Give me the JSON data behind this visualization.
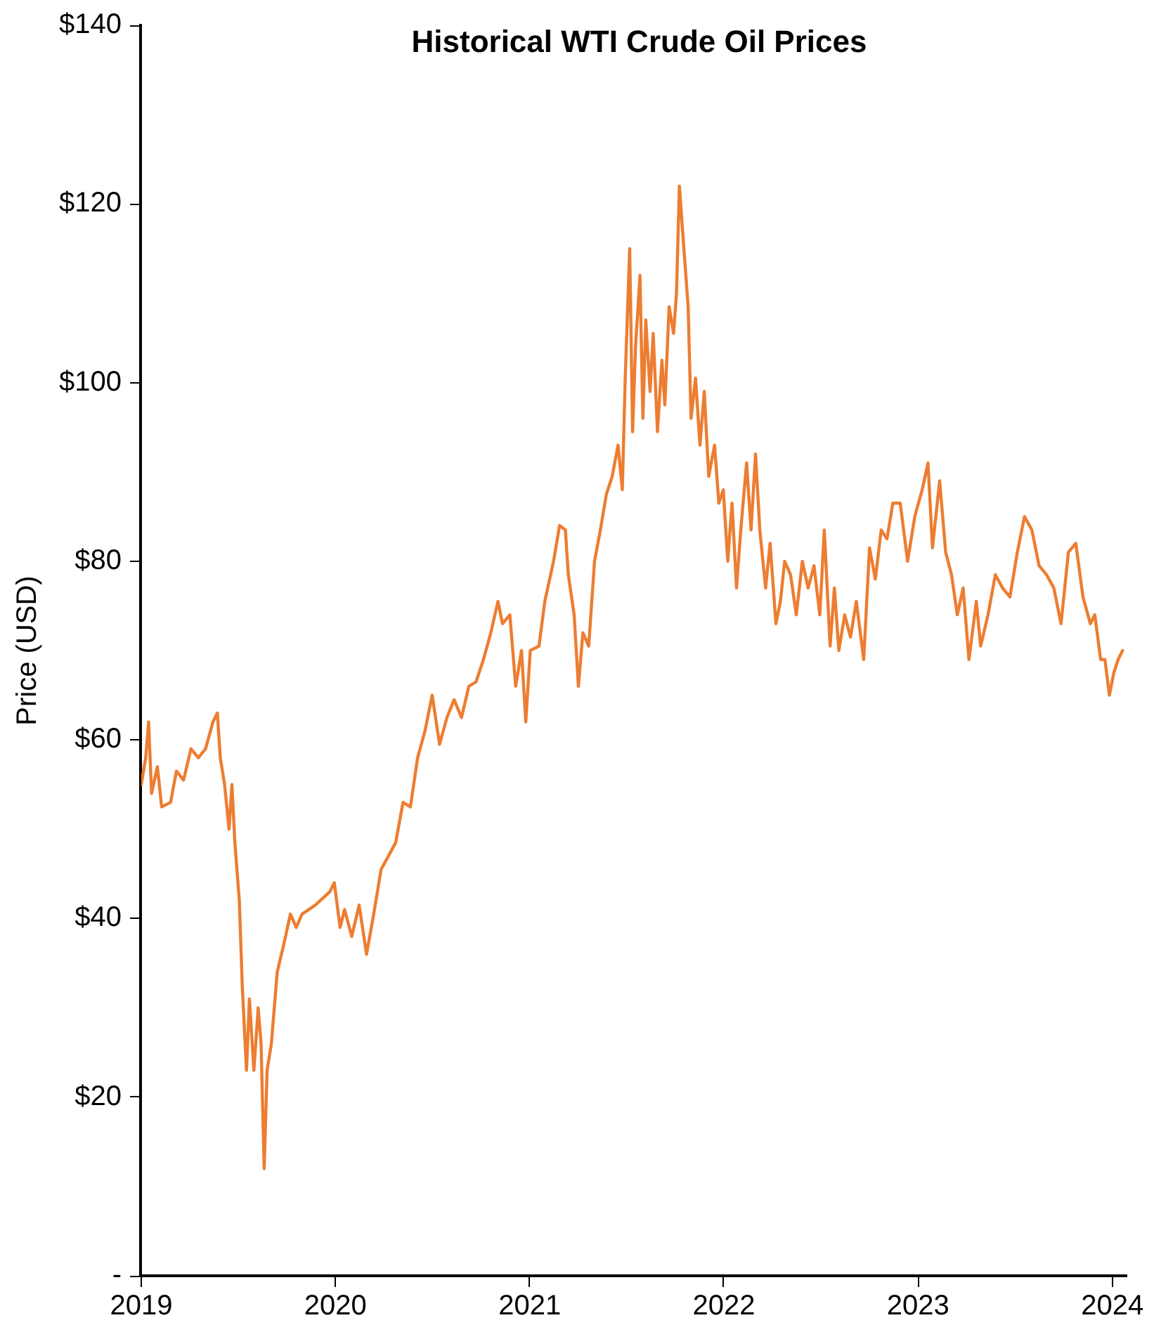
{
  "chart_data": {
    "type": "line",
    "title": "Historical WTI Crude Oil Prices",
    "ylabel": "Price (USD)",
    "grid": false,
    "legend": false,
    "marker": "none",
    "line_style": "solid",
    "xlim": [
      2019,
      2024.07
    ],
    "xticks": [
      2019,
      2020,
      2021,
      2022,
      2023,
      2024
    ],
    "ylim": [
      0,
      140
    ],
    "yticks": [
      {
        "value": 0,
        "label": "-"
      },
      {
        "value": 20,
        "label": "$20"
      },
      {
        "value": 40,
        "label": "$40"
      },
      {
        "value": 60,
        "label": "$60"
      },
      {
        "value": 80,
        "label": "$80"
      },
      {
        "value": 100,
        "label": "$100"
      },
      {
        "value": 120,
        "label": "$120"
      },
      {
        "value": 140,
        "label": "$140"
      }
    ],
    "x": [
      2019,
      2019.023,
      2019.038,
      2019.053,
      2019.083,
      2019.105,
      2019.151,
      2019.181,
      2019.218,
      2019.256,
      2019.294,
      2019.331,
      2019.369,
      2019.392,
      2019.407,
      2019.429,
      2019.452,
      2019.467,
      2019.482,
      2019.505,
      2019.52,
      2019.542,
      2019.557,
      2019.58,
      2019.602,
      2019.617,
      2019.633,
      2019.648,
      2019.67,
      2019.7,
      2019.738,
      2019.768,
      2019.798,
      2019.828,
      2019.896,
      2019.971,
      2019.994,
      2020.024,
      2020.047,
      2020.084,
      2020.122,
      2020.16,
      2020.197,
      2020.235,
      2020.273,
      2020.31,
      2020.348,
      2020.386,
      2020.423,
      2020.461,
      2020.498,
      2020.536,
      2020.574,
      2020.611,
      2020.649,
      2020.687,
      2020.724,
      2020.762,
      2020.8,
      2020.837,
      2020.86,
      2020.898,
      2020.928,
      2020.958,
      2020.98,
      2021.003,
      2021.048,
      2021.078,
      2021.123,
      2021.154,
      2021.184,
      2021.199,
      2021.229,
      2021.251,
      2021.274,
      2021.304,
      2021.334,
      2021.364,
      2021.395,
      2021.425,
      2021.455,
      2021.477,
      2021.492,
      2021.515,
      2021.53,
      2021.545,
      2021.568,
      2021.583,
      2021.598,
      2021.62,
      2021.636,
      2021.658,
      2021.681,
      2021.696,
      2021.718,
      2021.741,
      2021.756,
      2021.771,
      2021.794,
      2021.816,
      2021.831,
      2021.854,
      2021.877,
      2021.899,
      2021.922,
      2021.952,
      2021.974,
      2021.997,
      2022.02,
      2022.042,
      2022.065,
      2022.087,
      2022.117,
      2022.14,
      2022.163,
      2022.185,
      2022.215,
      2022.238,
      2022.268,
      2022.291,
      2022.313,
      2022.343,
      2022.373,
      2022.404,
      2022.434,
      2022.464,
      2022.494,
      2022.517,
      2022.547,
      2022.569,
      2022.592,
      2022.622,
      2022.652,
      2022.682,
      2022.72,
      2022.75,
      2022.78,
      2022.81,
      2022.84,
      2022.87,
      2022.908,
      2022.946,
      2022.983,
      2023.021,
      2023.051,
      2023.074,
      2023.111,
      2023.142,
      2023.172,
      2023.202,
      2023.232,
      2023.262,
      2023.3,
      2023.322,
      2023.36,
      2023.398,
      2023.435,
      2023.473,
      2023.511,
      2023.548,
      2023.586,
      2023.623,
      2023.661,
      2023.699,
      2023.736,
      2023.774,
      2023.812,
      2023.849,
      2023.887,
      2023.91,
      2023.94,
      2023.962,
      2023.985,
      2024.008,
      2024.03,
      2024.053
    ],
    "series": [
      {
        "color": "#ed7d31",
        "values": [
          55,
          58,
          62,
          54,
          57,
          52.5,
          53,
          56.5,
          55.5,
          59,
          58,
          59,
          62,
          63,
          58,
          55,
          50,
          55,
          48.5,
          42,
          32.5,
          23,
          31,
          23,
          30,
          26,
          12,
          23,
          26,
          34,
          37.5,
          40.5,
          39,
          40.5,
          41.5,
          43,
          44,
          39,
          41,
          38,
          41.5,
          36,
          40.5,
          45.5,
          47,
          48.5,
          53,
          52.5,
          58,
          61,
          65,
          59.5,
          62.5,
          64.5,
          62.5,
          66,
          66.5,
          69,
          72,
          75.5,
          73,
          74,
          66,
          70,
          62,
          70,
          70.5,
          75.5,
          80,
          84,
          83.5,
          78.5,
          74,
          66,
          72,
          70.5,
          80,
          83.5,
          87.5,
          89.5,
          93,
          88,
          100.5,
          115,
          94.5,
          104,
          112,
          96,
          107,
          99,
          105.5,
          94.5,
          102.5,
          97.5,
          108.5,
          105.5,
          110,
          122,
          115,
          108.5,
          96,
          100.5,
          93,
          99,
          89.5,
          93,
          86.5,
          88,
          80,
          86.5,
          77,
          83.5,
          91,
          83.5,
          92,
          83.5,
          77,
          82,
          73,
          75.5,
          80,
          78.5,
          74,
          80,
          77,
          79.5,
          74,
          83.5,
          70.5,
          77,
          70,
          74,
          71.5,
          75.5,
          69,
          81.5,
          78,
          83.5,
          82.5,
          86.5,
          86.5,
          80,
          85,
          88,
          91,
          81.5,
          89,
          81,
          78.5,
          74,
          77,
          69,
          75.5,
          70.5,
          74,
          78.5,
          77,
          76,
          81,
          85,
          83.5,
          79.5,
          78.5,
          77,
          73,
          81,
          82,
          76,
          73,
          74,
          69,
          69,
          65,
          67.5,
          69,
          70
        ]
      }
    ]
  }
}
